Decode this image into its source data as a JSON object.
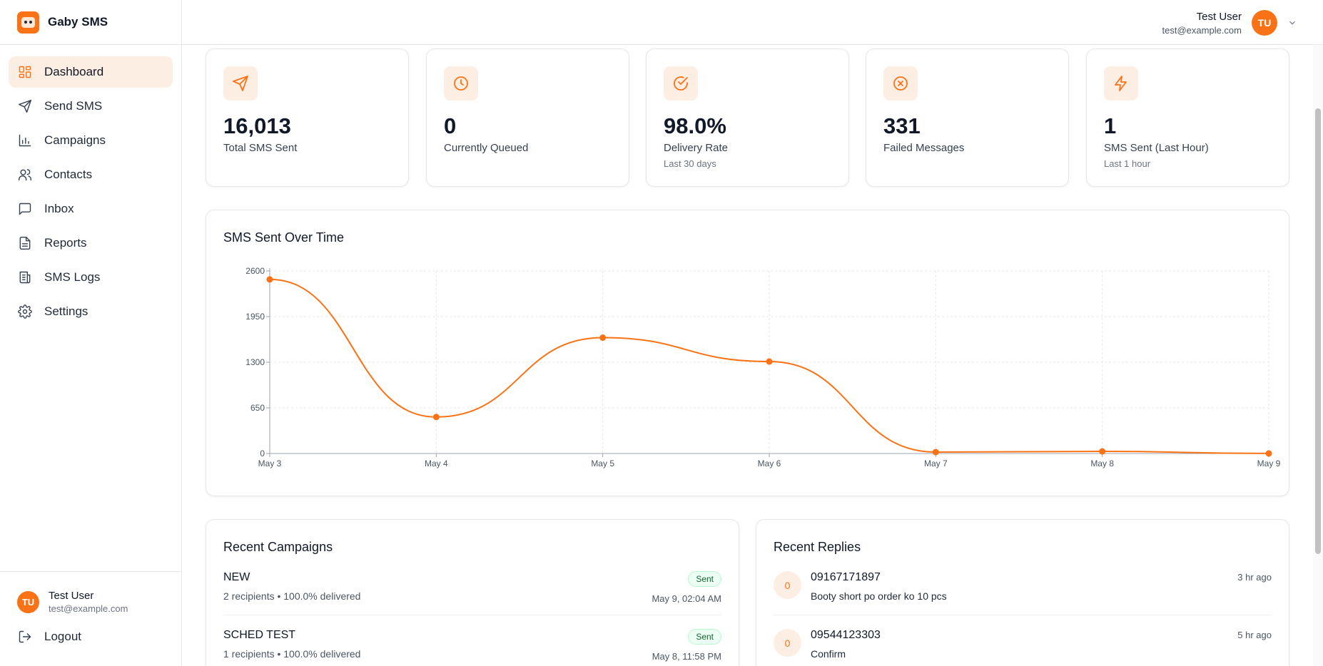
{
  "brand": {
    "name": "Gaby SMS"
  },
  "nav": [
    {
      "label": "Dashboard",
      "icon": "dashboard-icon",
      "active": true
    },
    {
      "label": "Send SMS",
      "icon": "send-icon"
    },
    {
      "label": "Campaigns",
      "icon": "bar-chart-icon"
    },
    {
      "label": "Contacts",
      "icon": "users-icon"
    },
    {
      "label": "Inbox",
      "icon": "message-icon"
    },
    {
      "label": "Reports",
      "icon": "file-icon"
    },
    {
      "label": "SMS Logs",
      "icon": "logs-icon"
    },
    {
      "label": "Settings",
      "icon": "gear-icon"
    }
  ],
  "user": {
    "initials": "TU",
    "name": "Test User",
    "email": "test@example.com"
  },
  "logout_label": "Logout",
  "stats": [
    {
      "value": "16,013",
      "label": "Total SMS Sent",
      "sub": "",
      "icon": "send-icon"
    },
    {
      "value": "0",
      "label": "Currently Queued",
      "sub": "",
      "icon": "clock-icon"
    },
    {
      "value": "98.0%",
      "label": "Delivery Rate",
      "sub": "Last 30 days",
      "icon": "check-circle-icon"
    },
    {
      "value": "331",
      "label": "Failed Messages",
      "sub": "",
      "icon": "x-circle-icon"
    },
    {
      "value": "1",
      "label": "SMS Sent (Last Hour)",
      "sub": "Last 1 hour",
      "icon": "bolt-icon"
    }
  ],
  "chart_title": "SMS Sent Over Time",
  "chart_data": {
    "type": "line",
    "title": "SMS Sent Over Time",
    "categories": [
      "May 3",
      "May 4",
      "May 5",
      "May 6",
      "May 7",
      "May 8",
      "May 9"
    ],
    "series": [
      {
        "values": [
          2480,
          520,
          1650,
          1310,
          20,
          30,
          1
        ]
      }
    ],
    "yticks": [
      0,
      650,
      1300,
      1950,
      2600
    ],
    "ylim": [
      0,
      2600
    ],
    "xlabel": "",
    "ylabel": "",
    "grid": true,
    "color": "#f97316"
  },
  "recent_campaigns": {
    "title": "Recent Campaigns",
    "items": [
      {
        "name": "NEW",
        "meta": "2 recipients • 100.0% delivered",
        "status": "Sent",
        "date": "May 9, 02:04 AM"
      },
      {
        "name": "SCHED TEST",
        "meta": "1 recipients • 100.0% delivered",
        "status": "Sent",
        "date": "May 8, 11:58 PM"
      }
    ]
  },
  "recent_replies": {
    "title": "Recent Replies",
    "items": [
      {
        "initial": "0",
        "number": "09167171897",
        "message": "Booty short po order ko 10 pcs",
        "time": "3 hr ago"
      },
      {
        "initial": "0",
        "number": "09544123303",
        "message": "Confirm",
        "time": "5 hr ago"
      }
    ]
  }
}
